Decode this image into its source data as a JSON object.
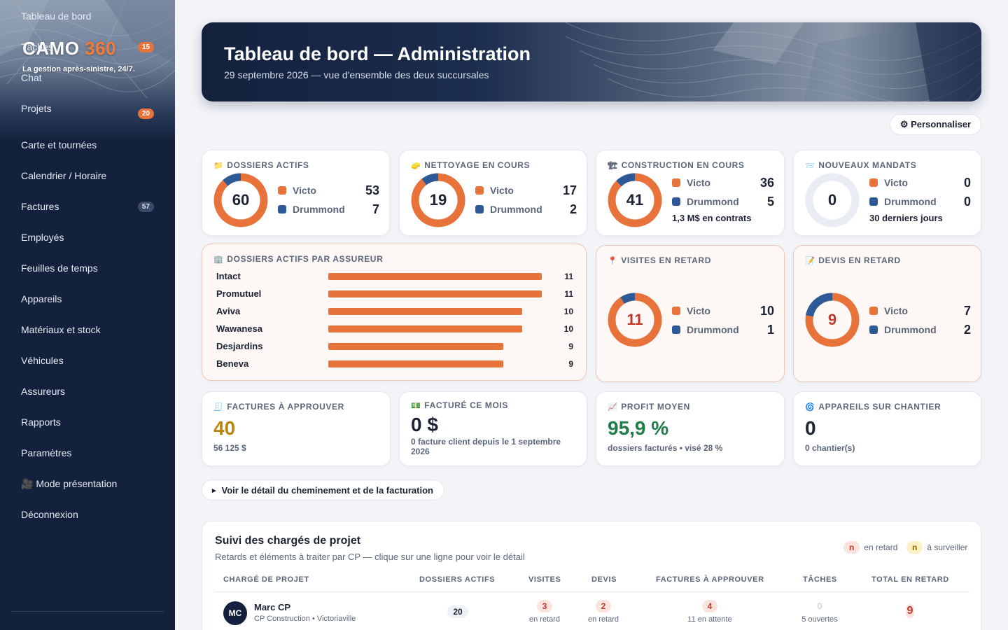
{
  "brand": {
    "name": "CAMO",
    "accent": "360",
    "tagline": "La gestion après-sinistre, 24/7."
  },
  "nav": [
    {
      "label": "Tableau de bord"
    },
    {
      "label": "Tâches",
      "badge": "15"
    },
    {
      "label": "Chat"
    },
    {
      "label": "Projets",
      "badge": "20"
    },
    {
      "label": "Carte et tournées"
    },
    {
      "label": "Calendrier / Horaire"
    },
    {
      "label": "Factures",
      "badge": "57"
    },
    {
      "label": "Employés"
    },
    {
      "label": "Feuilles de temps"
    },
    {
      "label": "Appareils"
    },
    {
      "label": "Matériaux et stock"
    },
    {
      "label": "Véhicules"
    },
    {
      "label": "Assureurs"
    },
    {
      "label": "Rapports"
    },
    {
      "label": "Paramètres"
    },
    {
      "label": "🎥 Mode présentation"
    },
    {
      "label": "Déconnexion"
    }
  ],
  "header": {
    "title": "Tableau de bord — Administration",
    "subtitle": "29 septembre 2026 — vue d'ensemble des deux succursales"
  },
  "customize_label": "⚙ Personnaliser",
  "cards": {
    "dossiers": {
      "icon": "📁",
      "title": "DOSSIERS ACTIFS",
      "total": "60",
      "victo": 53,
      "drummond": 7
    },
    "nettoyage": {
      "icon": "🧽",
      "title": "NETTOYAGE EN COURS",
      "total": "19",
      "victo": 17,
      "drummond": 2
    },
    "construction": {
      "icon": "🏗",
      "title": "CONSTRUCTION EN COURS",
      "total": "41",
      "victo": 36,
      "drummond": 5,
      "note": "1,3 M$ en contrats"
    },
    "mandats": {
      "icon": "📨",
      "title": "NOUVEAUX MANDATS",
      "total": "0",
      "victo": 0,
      "drummond": 0,
      "note": "30 derniers jours"
    },
    "visites": {
      "icon": "📍",
      "title": "VISITES EN RETARD",
      "total": "11",
      "victo": 10,
      "drummond": 1
    },
    "devis": {
      "icon": "📝",
      "title": "DEVIS EN RETARD",
      "total": "9",
      "victo": 7,
      "drummond": 2
    }
  },
  "legend_labels": {
    "victo": "Victo",
    "drummond": "Drummond"
  },
  "insurers": {
    "icon": "🏢",
    "title": "DOSSIERS ACTIFS PAR ASSUREUR",
    "max": 11,
    "rows": [
      {
        "name": "Intact",
        "value": 11
      },
      {
        "name": "Promutuel",
        "value": 11
      },
      {
        "name": "Aviva",
        "value": 10
      },
      {
        "name": "Wawanesa",
        "value": 10
      },
      {
        "name": "Desjardins",
        "value": 9
      },
      {
        "name": "Beneva",
        "value": 9
      }
    ]
  },
  "kpis": {
    "factures": {
      "icon": "🧾",
      "title": "FACTURES À APPROUVER",
      "value": "40",
      "sub": "56 125 $"
    },
    "facture_mois": {
      "icon": "💵",
      "title": "FACTURÉ CE MOIS",
      "value": "0 $",
      "sub": "0 facture client depuis le 1 septembre 2026"
    },
    "profit": {
      "icon": "📈",
      "title": "PROFIT MOYEN",
      "value": "95,9 %",
      "sub": "dossiers facturés • visé 28 %"
    },
    "appareils": {
      "icon": "🌀",
      "title": "APPAREILS SUR CHANTIER",
      "value": "0",
      "sub": "0 chantier(s)"
    }
  },
  "colors": {
    "victo": "#e8733a",
    "drummond": "#2d5a96",
    "empty": "#e9edf3",
    "gold": "#b8860b",
    "green": "#1e7d47"
  },
  "detail_button": "Voir le détail du cheminement et de la facturation",
  "detail_arrow": "▸",
  "tracking": {
    "title": "Suivi des chargés de projet",
    "subtitle": "Retards et éléments à traiter par CP — clique sur une ligne pour voir le détail",
    "legend_n": "n",
    "legend_late": "en retard",
    "legend_watch": "à surveiller",
    "columns": [
      "CHARGÉ DE PROJET",
      "DOSSIERS ACTIFS",
      "VISITES",
      "DEVIS",
      "FACTURES À APPROUVER",
      "TÂCHES",
      "TOTAL EN RETARD"
    ],
    "rows": [
      {
        "initials": "MC",
        "name": "Marc CP",
        "detail": "CP Construction • Victoriaville",
        "dossiers": "20",
        "visites": "3",
        "visites_sub": "en retard",
        "devis": "2",
        "devis_sub": "en retard",
        "factures": "4",
        "factures_sub": "11 en attente",
        "taches": "0",
        "taches_sub": "5 ouvertes",
        "total": "9"
      }
    ]
  }
}
